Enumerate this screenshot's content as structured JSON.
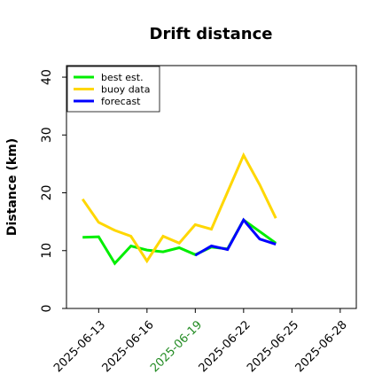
{
  "chart_data": {
    "type": "line",
    "title": "Drift distance",
    "xlabel": "",
    "ylabel": "Distance (km)",
    "xlim": [
      "2025-06-11",
      "2025-06-29"
    ],
    "ylim": [
      0,
      42
    ],
    "yticks": [
      0,
      10,
      20,
      30,
      40
    ],
    "xticks": [
      "2025-06-13",
      "2025-06-16",
      "2025-06-19",
      "2025-06-22",
      "2025-06-25",
      "2025-06-28"
    ],
    "xtick_colors": [
      "#000000",
      "#000000",
      "#228B22",
      "#000000",
      "#000000",
      "#000000"
    ],
    "grid": false,
    "legend_position": "top-left",
    "series": [
      {
        "name": "best est.",
        "color": "#00ee00",
        "x": [
          "2025-06-12",
          "2025-06-13",
          "2025-06-14",
          "2025-06-15",
          "2025-06-16",
          "2025-06-17",
          "2025-06-18",
          "2025-06-19",
          "2025-06-20",
          "2025-06-21",
          "2025-06-22",
          "2025-06-23",
          "2025-06-24"
        ],
        "values": [
          12.3,
          12.4,
          7.8,
          10.8,
          10.1,
          9.8,
          10.5,
          9.3,
          10.6,
          10.3,
          15.3,
          13.3,
          11.3
        ]
      },
      {
        "name": "buoy data",
        "color": "#ffd700",
        "x": [
          "2025-06-12",
          "2025-06-13",
          "2025-06-14",
          "2025-06-15",
          "2025-06-16",
          "2025-06-17",
          "2025-06-18",
          "2025-06-19",
          "2025-06-20",
          "2025-06-22",
          "2025-06-23",
          "2025-06-24"
        ],
        "values": [
          18.9,
          14.9,
          13.5,
          12.5,
          8.2,
          12.5,
          11.3,
          14.5,
          13.7,
          26.5,
          21.4,
          15.6
        ]
      },
      {
        "name": "forecast",
        "color": "#0000ff",
        "x": [
          "2025-06-19",
          "2025-06-20",
          "2025-06-21",
          "2025-06-22",
          "2025-06-23",
          "2025-06-24"
        ],
        "values": [
          9.2,
          10.8,
          10.2,
          15.3,
          12.0,
          11.1
        ]
      }
    ]
  }
}
